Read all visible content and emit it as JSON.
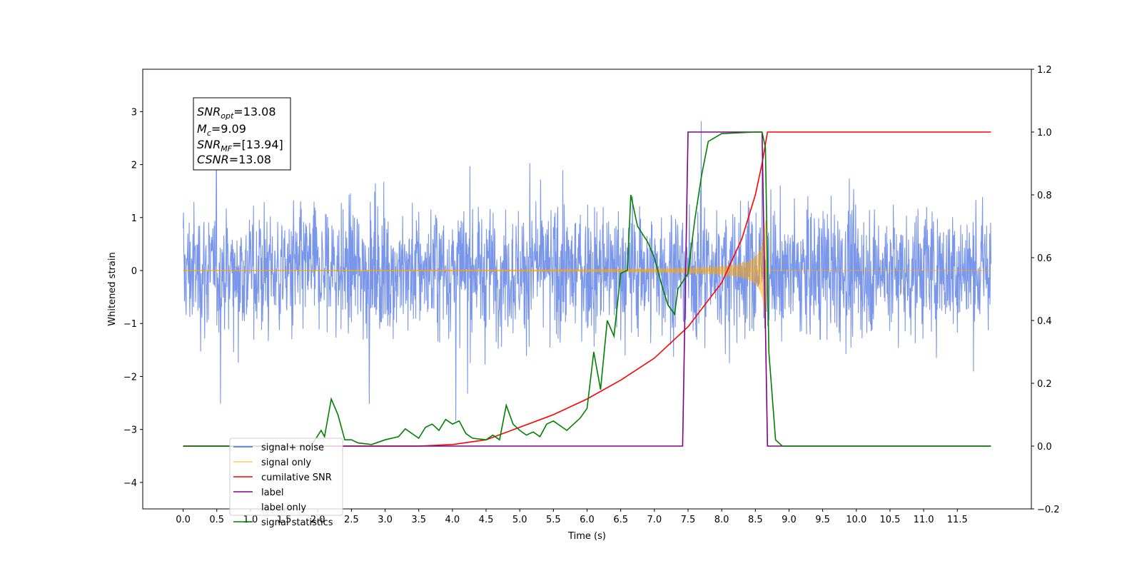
{
  "chart_data": {
    "type": "line",
    "xlabel": "Time (s)",
    "ylabel_left": "Whitened strain",
    "xlim": [
      -0.6,
      12.6
    ],
    "ylim_left": [
      -4.5,
      3.8
    ],
    "ylim_right": [
      -0.2,
      1.2
    ],
    "x_ticks": [
      "0.0",
      "0.5",
      "1.0",
      "1.5",
      "2.0",
      "2.5",
      "3.0",
      "3.5",
      "4.0",
      "4.5",
      "5.0",
      "5.5",
      "6.0",
      "6.5",
      "7.0",
      "7.5",
      "8.0",
      "8.5",
      "9.0",
      "9.5",
      "10.0",
      "10.5",
      "11.0",
      "11.5"
    ],
    "y_ticks_left": [
      "−4",
      "−3",
      "−2",
      "−1",
      "0",
      "1",
      "2",
      "3"
    ],
    "y_ticks_right": [
      "−0.2",
      "0.0",
      "0.2",
      "0.4",
      "0.6",
      "0.8",
      "1.0",
      "1.2"
    ],
    "legend_position": "lower-left",
    "annotation": {
      "snr_opt_base": "SNR",
      "snr_opt_sub": "opt",
      "snr_opt_value": "=13.08",
      "mc_base": "M",
      "mc_sub": "c",
      "mc_value": "=9.09",
      "snr_mf_base": "SNR",
      "snr_mf_sub": "MF",
      "snr_mf_value": "=[13.94]",
      "csnr_base": "CSNR",
      "csnr_value": "=13.08"
    },
    "series": [
      {
        "name": "signal+ noise",
        "axis": "left",
        "color": "#4169e1",
        "style": "noise band, amplitude ~±1.5 with spikes to ~±3.4",
        "x_range": [
          0.0,
          12.0
        ]
      },
      {
        "name": "signal only",
        "axis": "left",
        "color": "#ffa500",
        "style": "chirp, amplitude grows from ~0 to ~0.9 at merger (t≈8.65 s)",
        "x_range": [
          0.0,
          12.0
        ]
      },
      {
        "name": "cumilative SNR",
        "axis": "right",
        "color": "#ff0000",
        "points": [
          [
            0,
            0
          ],
          [
            3.5,
            0
          ],
          [
            4.0,
            0.005
          ],
          [
            4.5,
            0.02
          ],
          [
            5.0,
            0.06
          ],
          [
            5.5,
            0.1
          ],
          [
            6.0,
            0.15
          ],
          [
            6.5,
            0.21
          ],
          [
            7.0,
            0.28
          ],
          [
            7.5,
            0.38
          ],
          [
            8.0,
            0.52
          ],
          [
            8.3,
            0.66
          ],
          [
            8.5,
            0.8
          ],
          [
            8.6,
            0.9
          ],
          [
            8.68,
            1.0
          ],
          [
            12.0,
            1.0
          ]
        ]
      },
      {
        "name": "label",
        "axis": "right",
        "color": "#800080",
        "points": [
          [
            0,
            0
          ],
          [
            7.42,
            0
          ],
          [
            7.5,
            1.0
          ],
          [
            8.6,
            1.0
          ],
          [
            8.68,
            0
          ],
          [
            12.0,
            0
          ]
        ]
      },
      {
        "name": "label only",
        "axis": "right",
        "color": "#c8c8c8",
        "points": []
      },
      {
        "name": "signal statistics",
        "axis": "right",
        "color": "#008000",
        "points": [
          [
            0,
            0
          ],
          [
            1.7,
            0
          ],
          [
            1.9,
            0
          ],
          [
            2.05,
            0.05
          ],
          [
            2.1,
            0.03
          ],
          [
            2.2,
            0.15
          ],
          [
            2.3,
            0.1
          ],
          [
            2.4,
            0.02
          ],
          [
            2.5,
            0.02
          ],
          [
            2.6,
            0.01
          ],
          [
            2.8,
            0.005
          ],
          [
            3.0,
            0.02
          ],
          [
            3.2,
            0.03
          ],
          [
            3.3,
            0.055
          ],
          [
            3.5,
            0.025
          ],
          [
            3.6,
            0.06
          ],
          [
            3.7,
            0.07
          ],
          [
            3.8,
            0.05
          ],
          [
            3.9,
            0.085
          ],
          [
            4.0,
            0.07
          ],
          [
            4.1,
            0.08
          ],
          [
            4.2,
            0.04
          ],
          [
            4.3,
            0.025
          ],
          [
            4.5,
            0.02
          ],
          [
            4.6,
            0.035
          ],
          [
            4.7,
            0.02
          ],
          [
            4.8,
            0.13
          ],
          [
            4.9,
            0.07
          ],
          [
            5.0,
            0.05
          ],
          [
            5.1,
            0.035
          ],
          [
            5.2,
            0.045
          ],
          [
            5.3,
            0.03
          ],
          [
            5.4,
            0.07
          ],
          [
            5.5,
            0.08
          ],
          [
            5.7,
            0.05
          ],
          [
            5.9,
            0.09
          ],
          [
            6.0,
            0.12
          ],
          [
            6.1,
            0.3
          ],
          [
            6.2,
            0.18
          ],
          [
            6.3,
            0.4
          ],
          [
            6.4,
            0.35
          ],
          [
            6.5,
            0.55
          ],
          [
            6.6,
            0.56
          ],
          [
            6.65,
            0.8
          ],
          [
            6.75,
            0.7
          ],
          [
            6.9,
            0.65
          ],
          [
            7.0,
            0.6
          ],
          [
            7.1,
            0.52
          ],
          [
            7.2,
            0.45
          ],
          [
            7.3,
            0.42
          ],
          [
            7.35,
            0.5
          ],
          [
            7.5,
            0.55
          ],
          [
            7.6,
            0.72
          ],
          [
            7.7,
            0.86
          ],
          [
            7.8,
            0.97
          ],
          [
            8.0,
            0.995
          ],
          [
            8.5,
            1.0
          ],
          [
            8.6,
            1.0
          ],
          [
            8.65,
            0.95
          ],
          [
            8.7,
            0.3
          ],
          [
            8.8,
            0.02
          ],
          [
            8.9,
            0
          ],
          [
            12.0,
            0
          ]
        ]
      }
    ]
  }
}
